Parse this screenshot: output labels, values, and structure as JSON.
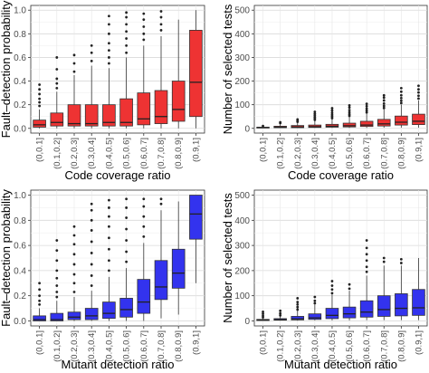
{
  "chart_data": [
    {
      "id": "tl",
      "type": "box",
      "xlabel": "Code coverage ratio",
      "ylabel": "Fault–detection probability",
      "categories": [
        "(0,0.1]",
        "(0.1,0.2]",
        "(0.2,0.3]",
        "(0.3,0.4]",
        "(0.4,0.5]",
        "(0.5,0.6]",
        "(0.6,0.7]",
        "(0.7,0.8]",
        "(0.8,0.9]",
        "(0.9,1]"
      ],
      "yticks": [
        "0.0",
        "0.2",
        "0.4",
        "0.6",
        "0.8",
        "1.0"
      ],
      "ylim": [
        0,
        1.0
      ],
      "fill": "#ee3333",
      "grid": true,
      "boxes": [
        {
          "min": 0.0,
          "q1": 0.01,
          "median": 0.03,
          "q3": 0.07,
          "max": 0.16,
          "outliers": [
            0.19,
            0.22,
            0.25,
            0.29,
            0.33,
            0.37
          ]
        },
        {
          "min": 0.0,
          "q1": 0.02,
          "median": 0.05,
          "q3": 0.13,
          "max": 0.31,
          "outliers": [
            0.34,
            0.38,
            0.42,
            0.5,
            0.6
          ]
        },
        {
          "min": 0.0,
          "q1": 0.02,
          "median": 0.04,
          "q3": 0.2,
          "max": 0.45,
          "outliers": [
            0.48,
            0.55,
            0.62
          ]
        },
        {
          "min": 0.0,
          "q1": 0.02,
          "median": 0.04,
          "q3": 0.2,
          "max": 0.53,
          "outliers": [
            0.57,
            0.64,
            0.7
          ]
        },
        {
          "min": 0.0,
          "q1": 0.02,
          "median": 0.05,
          "q3": 0.2,
          "max": 0.51,
          "outliers": [
            0.55,
            0.6,
            0.66,
            0.72,
            0.8,
            0.88,
            0.95
          ]
        },
        {
          "min": 0.0,
          "q1": 0.02,
          "median": 0.05,
          "q3": 0.25,
          "max": 0.6,
          "outliers": [
            0.64,
            0.7,
            0.76,
            0.82,
            0.88,
            0.94,
            0.98
          ]
        },
        {
          "min": 0.0,
          "q1": 0.03,
          "median": 0.08,
          "q3": 0.3,
          "max": 0.7,
          "outliers": [
            0.75,
            0.8,
            0.86,
            0.92,
            0.97
          ]
        },
        {
          "min": 0.0,
          "q1": 0.04,
          "median": 0.1,
          "q3": 0.32,
          "max": 0.78,
          "outliers": [
            0.83,
            0.88,
            0.94,
            0.99
          ]
        },
        {
          "min": 0.0,
          "q1": 0.06,
          "median": 0.16,
          "q3": 0.4,
          "max": 0.92,
          "outliers": []
        },
        {
          "min": 0.0,
          "q1": 0.1,
          "median": 0.39,
          "q3": 0.83,
          "max": 1.0,
          "outliers": []
        }
      ]
    },
    {
      "id": "tr",
      "type": "box",
      "xlabel": "Code coverage ratio",
      "ylabel": "Number of selected tests",
      "categories": [
        "(0,0.1]",
        "(0.1,0.2]",
        "(0.2,0.3]",
        "(0.3,0.4]",
        "(0.4,0.5]",
        "(0.5,0.6]",
        "(0.6,0.7]",
        "(0.7,0.8]",
        "(0.8,0.9]",
        "(0.9,1]"
      ],
      "yticks": [
        "0",
        "100",
        "200",
        "300",
        "400",
        "500"
      ],
      "ylim": [
        0,
        500
      ],
      "fill": "#ee3333",
      "grid": true,
      "boxes": [
        {
          "min": 1,
          "q1": 2,
          "median": 3,
          "q3": 5,
          "max": 8,
          "outliers": [
            10
          ]
        },
        {
          "min": 1,
          "q1": 3,
          "median": 5,
          "q3": 9,
          "max": 18,
          "outliers": [
            22,
            26
          ]
        },
        {
          "min": 1,
          "q1": 3,
          "median": 6,
          "q3": 12,
          "max": 25,
          "outliers": [
            28,
            33,
            38
          ]
        },
        {
          "min": 2,
          "q1": 4,
          "median": 7,
          "q3": 14,
          "max": 32,
          "outliers": [
            36,
            42,
            48,
            55,
            62,
            70
          ]
        },
        {
          "min": 2,
          "q1": 5,
          "median": 9,
          "q3": 17,
          "max": 38,
          "outliers": [
            43,
            50,
            57,
            65,
            75,
            85
          ]
        },
        {
          "min": 2,
          "q1": 6,
          "median": 11,
          "q3": 22,
          "max": 48,
          "outliers": [
            53,
            60,
            68,
            77,
            88,
            97
          ]
        },
        {
          "min": 2,
          "q1": 8,
          "median": 14,
          "q3": 30,
          "max": 62,
          "outliers": [
            67,
            75,
            84,
            94,
            104
          ]
        },
        {
          "min": 3,
          "q1": 10,
          "median": 19,
          "q3": 38,
          "max": 80,
          "outliers": [
            86,
            95,
            105,
            118,
            130,
            140
          ]
        },
        {
          "min": 3,
          "q1": 14,
          "median": 26,
          "q3": 52,
          "max": 100,
          "outliers": [
            107,
            117,
            128,
            140,
            155,
            170
          ]
        },
        {
          "min": 3,
          "q1": 16,
          "median": 30,
          "q3": 60,
          "max": 118,
          "outliers": [
            126,
            138,
            152,
            165,
            180
          ]
        }
      ]
    },
    {
      "id": "bl",
      "type": "box",
      "xlabel": "Mutant detection ratio",
      "ylabel": "Fault–detection probability",
      "categories": [
        "(0,0.1]",
        "(0.1,0.2]",
        "(0.2,0.3]",
        "(0.3,0.4]",
        "(0.4,0.5]",
        "(0.5,0.6]",
        "(0.6,0.7]",
        "(0.7,0.8]",
        "(0.8,0.9]",
        "(0.9,1]"
      ],
      "yticks": [
        "0.0",
        "0.2",
        "0.4",
        "0.6",
        "0.8",
        "1.0"
      ],
      "ylim": [
        0,
        1.0
      ],
      "fill": "#3333ee",
      "grid": true,
      "boxes": [
        {
          "min": 0.0,
          "q1": 0.0,
          "median": 0.01,
          "q3": 0.04,
          "max": 0.1,
          "outliers": [
            0.13,
            0.16,
            0.2,
            0.25,
            0.3
          ]
        },
        {
          "min": 0.0,
          "q1": 0.0,
          "median": 0.01,
          "q3": 0.06,
          "max": 0.16,
          "outliers": [
            0.19,
            0.23,
            0.28,
            0.34,
            0.4,
            0.48,
            0.56,
            0.64
          ]
        },
        {
          "min": 0.0,
          "q1": 0.01,
          "median": 0.03,
          "q3": 0.07,
          "max": 0.19,
          "outliers": [
            0.23,
            0.3,
            0.37,
            0.45,
            0.53,
            0.61,
            0.68,
            0.75
          ]
        },
        {
          "min": 0.0,
          "q1": 0.01,
          "median": 0.04,
          "q3": 0.1,
          "max": 0.24,
          "outliers": [
            0.28,
            0.36,
            0.45,
            0.54,
            0.63,
            0.72,
            0.8,
            0.88,
            0.93
          ]
        },
        {
          "min": 0.0,
          "q1": 0.02,
          "median": 0.06,
          "q3": 0.15,
          "max": 0.35,
          "outliers": [
            0.4,
            0.48,
            0.57,
            0.66,
            0.75,
            0.83,
            0.9,
            0.96
          ]
        },
        {
          "min": 0.0,
          "q1": 0.03,
          "median": 0.09,
          "q3": 0.18,
          "max": 0.42,
          "outliers": [
            0.47,
            0.55,
            0.64,
            0.73,
            0.82,
            0.9,
            0.97
          ]
        },
        {
          "min": 0.0,
          "q1": 0.06,
          "median": 0.15,
          "q3": 0.33,
          "max": 0.62,
          "outliers": [
            0.67,
            0.75,
            0.83,
            0.91,
            0.97
          ]
        },
        {
          "min": 0.02,
          "q1": 0.17,
          "median": 0.27,
          "q3": 0.48,
          "max": 0.88,
          "outliers": [
            0.93,
            0.97
          ]
        },
        {
          "min": 0.05,
          "q1": 0.26,
          "median": 0.38,
          "q3": 0.57,
          "max": 0.95,
          "outliers": []
        },
        {
          "min": 0.3,
          "q1": 0.65,
          "median": 0.85,
          "q3": 1.0,
          "max": 1.0,
          "outliers": []
        }
      ]
    },
    {
      "id": "br",
      "type": "box",
      "xlabel": "Mutant detection ratio",
      "ylabel": "Number of selected tests",
      "categories": [
        "(0,0.1]",
        "(0.1,0.2]",
        "(0.2,0.3]",
        "(0.3,0.4]",
        "(0.4,0.5]",
        "(0.5,0.6]",
        "(0.6,0.7]",
        "(0.7,0.8]",
        "(0.8,0.9]",
        "(0.9,1]"
      ],
      "yticks": [
        "0",
        "100",
        "200",
        "300",
        "400",
        "500"
      ],
      "ylim": [
        0,
        500
      ],
      "fill": "#3333ee",
      "grid": true,
      "boxes": [
        {
          "min": 1,
          "q1": 2,
          "median": 3,
          "q3": 6,
          "max": 12,
          "outliers": [
            14,
            20,
            28,
            36
          ]
        },
        {
          "min": 1,
          "q1": 3,
          "median": 5,
          "q3": 9,
          "max": 18,
          "outliers": [
            22,
            30,
            40
          ]
        },
        {
          "min": 1,
          "q1": 4,
          "median": 8,
          "q3": 18,
          "max": 40,
          "outliers": [
            45,
            55,
            65,
            75,
            90
          ]
        },
        {
          "min": 2,
          "q1": 6,
          "median": 12,
          "q3": 28,
          "max": 65,
          "outliers": [
            70,
            80,
            95
          ]
        },
        {
          "min": 2,
          "q1": 9,
          "median": 22,
          "q3": 50,
          "max": 105,
          "outliers": [
            110,
            125,
            140,
            158
          ]
        },
        {
          "min": 2,
          "q1": 12,
          "median": 28,
          "q3": 55,
          "max": 120,
          "outliers": [
            128,
            145
          ]
        },
        {
          "min": 3,
          "q1": 15,
          "median": 35,
          "q3": 80,
          "max": 180,
          "outliers": [
            195,
            215,
            240,
            265,
            290,
            320
          ]
        },
        {
          "min": 3,
          "q1": 18,
          "median": 45,
          "q3": 100,
          "max": 220,
          "outliers": [
            235,
            250
          ]
        },
        {
          "min": 3,
          "q1": 20,
          "median": 50,
          "q3": 108,
          "max": 220,
          "outliers": [
            230,
            245
          ]
        },
        {
          "min": 3,
          "q1": 22,
          "median": 52,
          "q3": 125,
          "max": 250,
          "outliers": []
        }
      ]
    }
  ]
}
